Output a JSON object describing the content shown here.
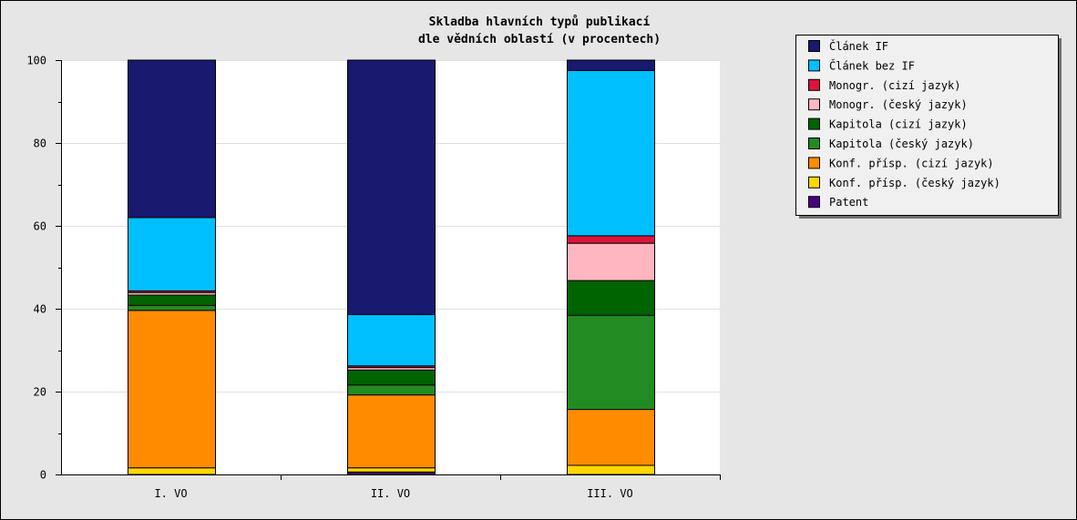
{
  "chart_data": {
    "type": "bar",
    "stacked": true,
    "title": [
      "Skladba hlavních typů publikací",
      "dle vědních oblastí  (v procentech)"
    ],
    "categories": [
      "I. VO",
      "II. VO",
      "III. VO"
    ],
    "ylim": [
      0,
      100
    ],
    "yticks": [
      "0",
      "20",
      "40",
      "60",
      "80",
      "100"
    ],
    "grid": true,
    "legend_position": "top-right",
    "series": [
      {
        "name": "Patent",
        "color": "#4b0082",
        "values": [
          0.0,
          0.6,
          0.0
        ]
      },
      {
        "name": "Konf. přísp. (český jazyk)",
        "color": "#ffd700",
        "values": [
          1.6,
          1.0,
          2.2
        ]
      },
      {
        "name": "Konf. přísp. (cizí jazyk)",
        "color": "#ff8c00",
        "values": [
          38.0,
          17.6,
          13.5
        ]
      },
      {
        "name": "Kapitola (český jazyk)",
        "color": "#228b22",
        "values": [
          1.2,
          2.4,
          22.7
        ]
      },
      {
        "name": "Kapitola (cizí jazyk)",
        "color": "#006400",
        "values": [
          2.5,
          3.6,
          8.4
        ]
      },
      {
        "name": "Monogr. (český jazyk)",
        "color": "#ffb6c1",
        "values": [
          0.6,
          0.6,
          9.0
        ]
      },
      {
        "name": "Monogr. (cizí jazyk)",
        "color": "#dc143c",
        "values": [
          0.4,
          0.4,
          1.8
        ]
      },
      {
        "name": "Článek bez IF",
        "color": "#00bfff",
        "values": [
          17.7,
          12.4,
          39.9
        ]
      },
      {
        "name": "Článek IF",
        "color": "#191970",
        "values": [
          38.0,
          61.4,
          2.5
        ]
      }
    ],
    "legend_order": [
      "Článek IF",
      "Článek bez IF",
      "Monogr. (cizí jazyk)",
      "Monogr. (český jazyk)",
      "Kapitola (cizí jazyk)",
      "Kapitola (český jazyk)",
      "Konf. přísp. (cizí jazyk)",
      "Konf. přísp. (český jazyk)",
      "Patent"
    ]
  }
}
